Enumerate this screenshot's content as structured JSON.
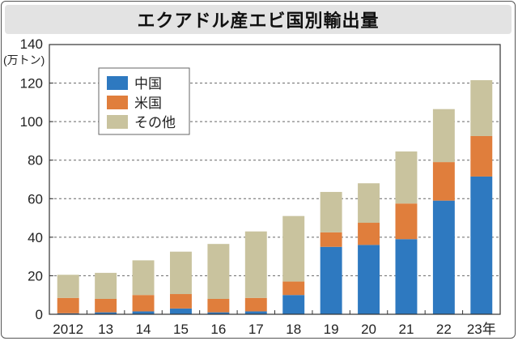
{
  "chart_data": {
    "type": "bar",
    "stacked": true,
    "title": "エクアドル産エビ国別輸出量",
    "ylabel_unit": "(万トン)",
    "ylim": [
      0,
      140
    ],
    "yticks": [
      "0",
      "20",
      "40",
      "60",
      "80",
      "100",
      "120",
      "140"
    ],
    "categories": [
      "2012",
      "13",
      "14",
      "15",
      "16",
      "17",
      "18",
      "19",
      "20",
      "21",
      "22",
      "23年"
    ],
    "series": [
      {
        "name": "中国",
        "color": "#2e79c0",
        "values": [
          0.5,
          1,
          1.5,
          3,
          1,
          1.5,
          10,
          35,
          36,
          39,
          59,
          71.5
        ]
      },
      {
        "name": "米国",
        "color": "#e07e3c",
        "values": [
          8,
          7,
          8.5,
          7.5,
          7,
          7,
          7,
          7.5,
          11.5,
          18.5,
          20,
          21
        ]
      },
      {
        "name": "その他",
        "color": "#c9c39e",
        "values": [
          12,
          13.5,
          18,
          22,
          28.5,
          34.5,
          34,
          21,
          20.5,
          27,
          27.5,
          29
        ]
      }
    ],
    "grid": true,
    "legend_position": "top-left"
  }
}
